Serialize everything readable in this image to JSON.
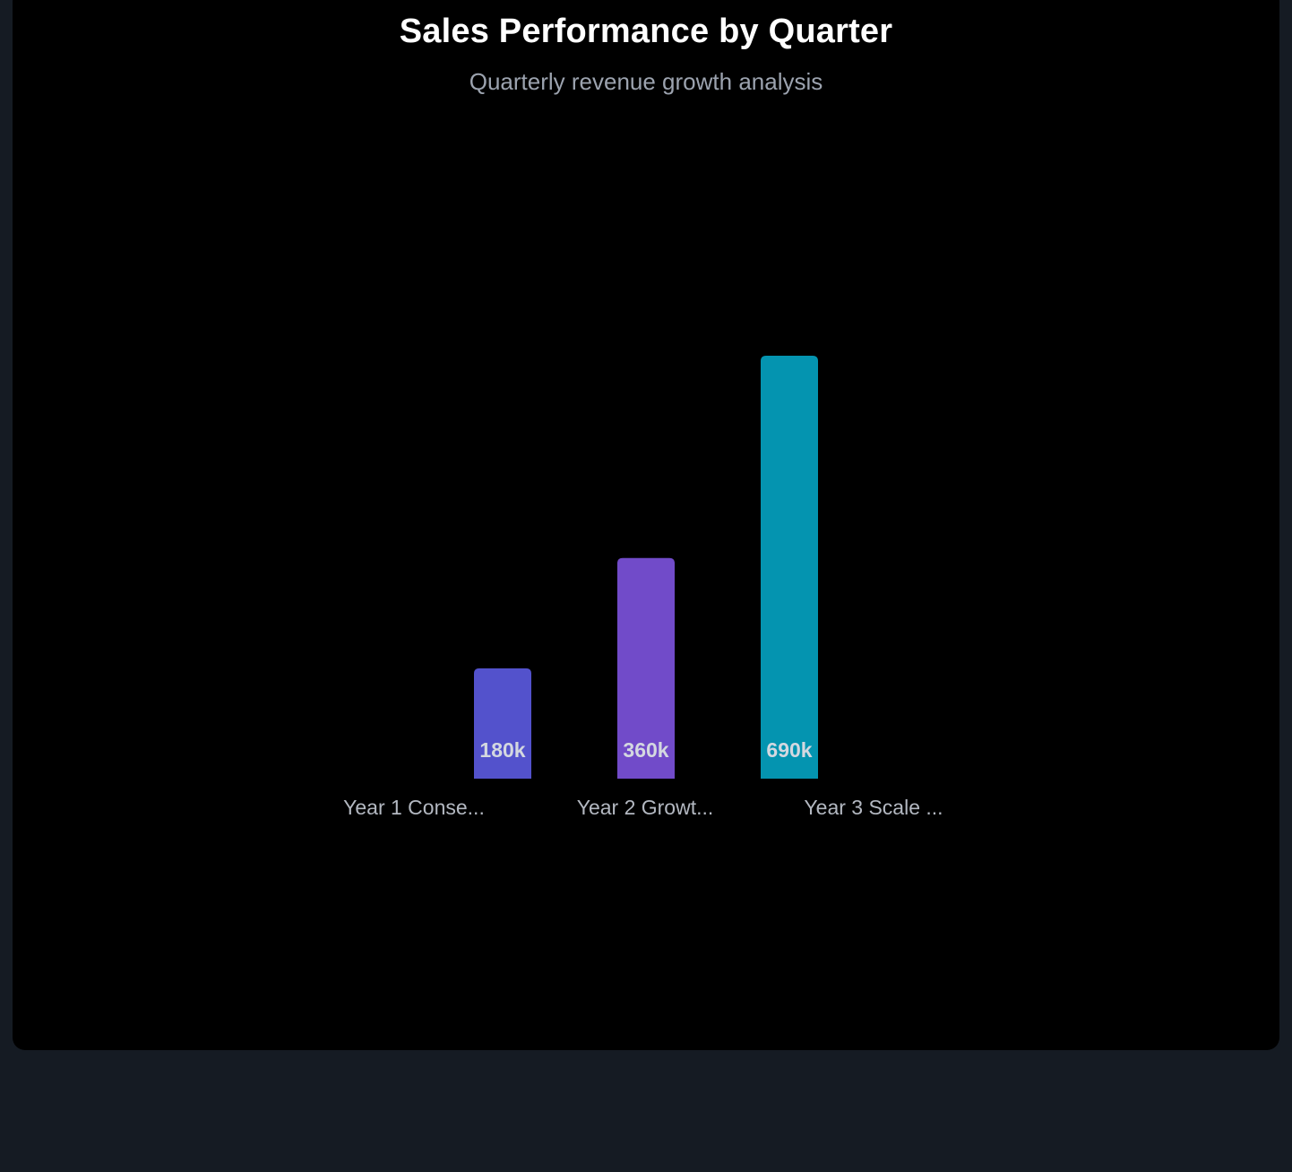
{
  "chart_data": {
    "type": "bar",
    "title": "Sales Performance by Quarter",
    "subtitle": "Quarterly revenue growth analysis",
    "categories": [
      "Year 1 Conse...",
      "Year 2 Growt...",
      "Year 3 Scale ..."
    ],
    "values": [
      180000,
      360000,
      690000
    ],
    "value_labels": [
      "180k",
      "360k",
      "690k"
    ],
    "colors": [
      "#5352cc",
      "#714bc9",
      "#0494b0"
    ],
    "ylim": [
      0,
      690000
    ],
    "grid": false,
    "legend": "none"
  },
  "colors": {
    "page_background": "#151b23",
    "card_background": "#000000",
    "title": "#ffffff",
    "subtitle": "#9ca3af",
    "axis_label": "#b3b8c1",
    "value_label": "#d4d8e0"
  }
}
